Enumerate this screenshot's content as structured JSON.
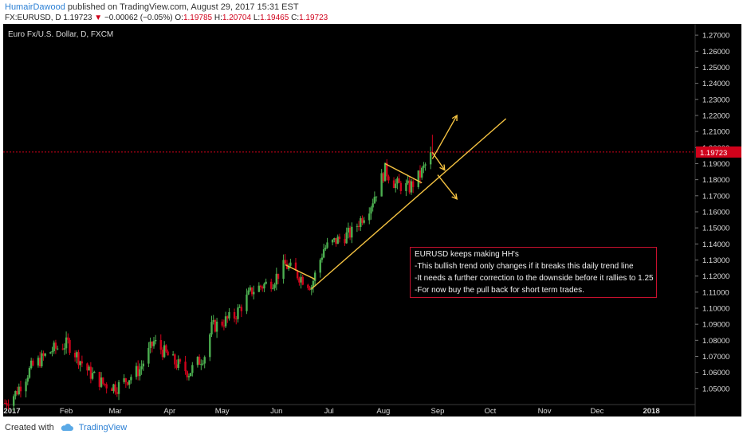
{
  "header": {
    "author": "HumairDawood",
    "published_text": "published on TradingView.com, August 29, 2017 15:31 EST",
    "symbol": "FX:EURUSD, D",
    "last": "1.19723",
    "change": "−0.00062 (−0.05%)",
    "o_label": "O:",
    "o_value": "1.19785",
    "h_label": "H:",
    "h_value": "1.20704",
    "l_label": "L:",
    "l_value": "1.19465",
    "c_label": "C:",
    "c_value": "1.19723"
  },
  "chart_title": "Euro Fx/U.S. Dollar, D, FXCM",
  "price_tag": "1.19723",
  "annotation": {
    "line1": "EURUSD keeps making HH's",
    "line2": "-This bullish trend only changes if it breaks this daily trend line",
    "line3": "-It needs a further correction to the downside before it rallies to 1.25",
    "line4": "-For now buy the pull back for short term trades."
  },
  "footer": {
    "created": "Created with",
    "brand": "TradingView"
  },
  "colors": {
    "background": "#000000",
    "up": "#4caf50",
    "down": "#d0021b",
    "trendline": "#f5c342",
    "price_line": "#d0021b",
    "annotation_border": "#c8102e"
  },
  "chart_data": {
    "type": "candlestick",
    "title": "Euro Fx/U.S. Dollar, D, FXCM",
    "timeframe": "D",
    "x_range": [
      "2016-12-27",
      "2018-01-26"
    ],
    "ylim": [
      1.04,
      1.277
    ],
    "y_ticks": [
      "1.27000",
      "1.26000",
      "1.25000",
      "1.24000",
      "1.23000",
      "1.22000",
      "1.21000",
      "1.20000",
      "1.19000",
      "1.18000",
      "1.17000",
      "1.16000",
      "1.15000",
      "1.14000",
      "1.13000",
      "1.12000",
      "1.11000",
      "1.10000",
      "1.09000",
      "1.08000",
      "1.07000",
      "1.06000",
      "1.05000"
    ],
    "x_ticks": [
      {
        "label": "2017",
        "date": "2017-01-01"
      },
      {
        "label": "Feb",
        "date": "2017-02-01"
      },
      {
        "label": "Mar",
        "date": "2017-03-01"
      },
      {
        "label": "Apr",
        "date": "2017-04-01"
      },
      {
        "label": "May",
        "date": "2017-05-01"
      },
      {
        "label": "Jun",
        "date": "2017-06-01"
      },
      {
        "label": "Jul",
        "date": "2017-07-01"
      },
      {
        "label": "Aug",
        "date": "2017-08-01"
      },
      {
        "label": "Sep",
        "date": "2017-09-01"
      },
      {
        "label": "Oct",
        "date": "2017-10-01"
      },
      {
        "label": "Nov",
        "date": "2017-11-01"
      },
      {
        "label": "Dec",
        "date": "2017-12-01"
      },
      {
        "label": "2018",
        "date": "2018-01-01"
      }
    ],
    "close_path": [
      [
        "2016-12-28",
        1.041
      ],
      [
        "2017-01-03",
        1.047
      ],
      [
        "2017-01-12",
        1.063
      ],
      [
        "2017-01-24",
        1.074
      ],
      [
        "2017-02-02",
        1.078
      ],
      [
        "2017-02-14",
        1.06
      ],
      [
        "2017-02-22",
        1.053
      ],
      [
        "2017-03-02",
        1.051
      ],
      [
        "2017-03-15",
        1.062
      ],
      [
        "2017-03-23",
        1.079
      ],
      [
        "2017-04-04",
        1.066
      ],
      [
        "2017-04-12",
        1.06
      ],
      [
        "2017-04-21",
        1.071
      ],
      [
        "2017-04-25",
        1.088
      ],
      [
        "2017-05-08",
        1.095
      ],
      [
        "2017-05-18",
        1.111
      ],
      [
        "2017-05-30",
        1.117
      ],
      [
        "2017-06-06",
        1.127
      ],
      [
        "2017-06-14",
        1.12
      ],
      [
        "2017-06-21",
        1.114
      ],
      [
        "2017-06-28",
        1.137
      ],
      [
        "2017-07-05",
        1.142
      ],
      [
        "2017-07-14",
        1.147
      ],
      [
        "2017-07-25",
        1.165
      ],
      [
        "2017-08-02",
        1.186
      ],
      [
        "2017-08-08",
        1.177
      ],
      [
        "2017-08-16",
        1.175
      ],
      [
        "2017-08-22",
        1.183
      ],
      [
        "2017-08-29",
        1.197
      ]
    ],
    "last_price": 1.19723,
    "trendlines": [
      {
        "name": "uptrend",
        "from": [
          "2017-06-21",
          1.112
        ],
        "to": [
          "2017-10-10",
          1.218
        ]
      },
      {
        "name": "june-flag",
        "from": [
          "2017-06-06",
          1.127
        ],
        "to": [
          "2017-06-23",
          1.118
        ]
      },
      {
        "name": "aug-flag",
        "from": [
          "2017-08-02",
          1.19
        ],
        "to": [
          "2017-08-23",
          1.178
        ]
      },
      {
        "name": "arrow-up",
        "from": [
          "2017-08-29",
          1.193
        ],
        "to": [
          "2017-09-12",
          1.22
        ]
      },
      {
        "name": "arrow-down-1",
        "from": [
          "2017-08-29",
          1.197
        ],
        "to": [
          "2017-09-05",
          1.186
        ]
      },
      {
        "name": "arrow-down-2",
        "from": [
          "2017-09-01",
          1.183
        ],
        "to": [
          "2017-09-12",
          1.168
        ]
      }
    ]
  }
}
